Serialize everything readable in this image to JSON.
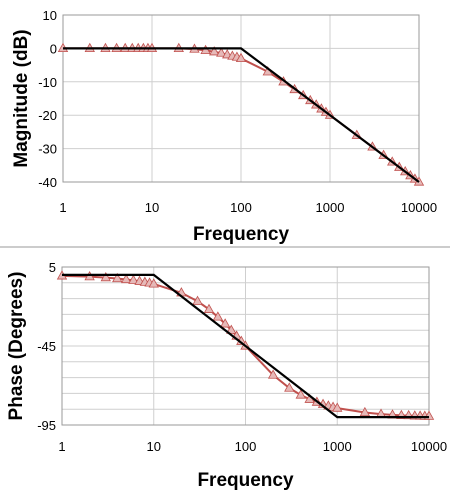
{
  "chart_data": [
    {
      "type": "line",
      "xlabel": "Frequency",
      "ylabel": "Magnitude  (dB)",
      "x_scale": "log",
      "xlim": [
        1,
        10000
      ],
      "ylim": [
        -40,
        10
      ],
      "x_tick_labels": [
        "1",
        "10",
        "100",
        "1000",
        "10000"
      ],
      "x_ticks": [
        1,
        10,
        100,
        1000,
        10000
      ],
      "y_tick_labels": [
        "10",
        "0",
        "-10",
        "-20",
        "-30",
        "-40"
      ],
      "y_ticks": [
        10,
        0,
        -10,
        -20,
        -30,
        -40
      ],
      "grid": true,
      "colors": {
        "measured": "#c0504d",
        "marker_fill": "#e6b9b8",
        "asymptote": "#000000"
      },
      "series": [
        {
          "style": "line-with-triangle-markers",
          "x": [
            1,
            2,
            3,
            4,
            5,
            6,
            7,
            8,
            9,
            10,
            20,
            30,
            40,
            50,
            60,
            70,
            80,
            90,
            100,
            200,
            300,
            400,
            500,
            600,
            700,
            800,
            900,
            1000,
            2000,
            3000,
            4000,
            5000,
            6000,
            7000,
            8000,
            9000,
            10000
          ],
          "y": [
            0,
            0,
            0,
            0,
            0,
            0,
            0,
            0,
            0,
            0,
            0,
            -0.2,
            -0.6,
            -1.0,
            -1.4,
            -1.9,
            -2.3,
            -2.6,
            -3.0,
            -7.0,
            -10.0,
            -12.3,
            -14.1,
            -15.6,
            -16.9,
            -18.1,
            -19.1,
            -20.0,
            -26.0,
            -29.5,
            -32.0,
            -34.0,
            -35.6,
            -36.9,
            -38.1,
            -39.1,
            -40.0
          ]
        },
        {
          "style": "asymptote-line",
          "x": [
            1,
            100,
            10000
          ],
          "y": [
            0,
            0,
            -40
          ]
        }
      ]
    },
    {
      "type": "line",
      "xlabel": "Frequency",
      "ylabel": "Phase (Degrees)",
      "x_scale": "log",
      "xlim": [
        1,
        10000
      ],
      "ylim": [
        -95,
        5
      ],
      "x_tick_labels": [
        "1",
        "10",
        "100",
        "1000",
        "10000"
      ],
      "x_ticks": [
        1,
        10,
        100,
        1000,
        10000
      ],
      "y_tick_labels": [
        "5",
        "-45",
        "-95"
      ],
      "y_ticks": [
        5,
        -45,
        -95
      ],
      "grid": true,
      "colors": {
        "measured": "#c0504d",
        "marker_fill": "#e6b9b8",
        "asymptote": "#000000"
      },
      "series": [
        {
          "style": "line-with-triangle-markers",
          "x": [
            1,
            2,
            3,
            4,
            5,
            6,
            7,
            8,
            9,
            10,
            20,
            30,
            40,
            50,
            60,
            70,
            80,
            90,
            100,
            200,
            300,
            400,
            500,
            600,
            700,
            800,
            900,
            1000,
            2000,
            3000,
            4000,
            5000,
            6000,
            7000,
            8000,
            9000,
            10000
          ],
          "y": [
            -0.6,
            -1.1,
            -1.7,
            -2.3,
            -2.9,
            -3.4,
            -4.0,
            -4.6,
            -5.1,
            -5.7,
            -11.3,
            -16.7,
            -21.8,
            -26.6,
            -31.0,
            -35.0,
            -38.7,
            -42.0,
            -45.0,
            -63.4,
            -71.6,
            -76.0,
            -78.7,
            -80.5,
            -81.9,
            -82.9,
            -83.7,
            -84.3,
            -87.1,
            -88.1,
            -88.6,
            -88.9,
            -89.0,
            -89.2,
            -89.3,
            -89.4,
            -89.4
          ]
        },
        {
          "style": "asymptote-line",
          "x": [
            1,
            10,
            1000,
            10000
          ],
          "y": [
            0,
            0,
            -90,
            -90
          ]
        }
      ]
    }
  ]
}
